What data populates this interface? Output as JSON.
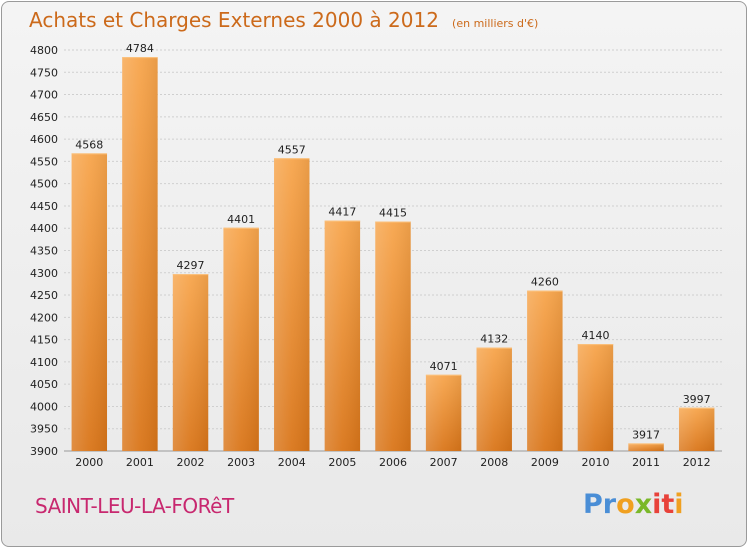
{
  "chart_data": {
    "type": "bar",
    "title": "Achats et Charges Externes 2000 à 2012",
    "subtitle": "(en milliers d'€)",
    "categories": [
      "2000",
      "2001",
      "2002",
      "2003",
      "2004",
      "2005",
      "2006",
      "2007",
      "2008",
      "2009",
      "2010",
      "2011",
      "2012"
    ],
    "values": [
      4568,
      4784,
      4297,
      4401,
      4557,
      4417,
      4415,
      4071,
      4132,
      4260,
      4140,
      3917,
      3997
    ],
    "ylim": [
      3900,
      4800
    ],
    "yticks": [
      3900,
      3950,
      4000,
      4050,
      4100,
      4150,
      4200,
      4250,
      4300,
      4350,
      4400,
      4450,
      4500,
      4550,
      4600,
      4650,
      4700,
      4750,
      4800
    ],
    "grid": true,
    "bar_color": "#f0973c"
  },
  "footer": {
    "town": "SAINT-LEU-LA-FORêT",
    "logo_letters": [
      {
        "ch": "P",
        "color": "#4a8ed6"
      },
      {
        "ch": "r",
        "color": "#4a8ed6"
      },
      {
        "ch": "o",
        "color": "#f0a020"
      },
      {
        "ch": "x",
        "color": "#7ab829"
      },
      {
        "ch": "i",
        "color": "#e8423a"
      },
      {
        "ch": "t",
        "color": "#e8423a"
      },
      {
        "ch": "i",
        "color": "#f0a020"
      }
    ]
  }
}
